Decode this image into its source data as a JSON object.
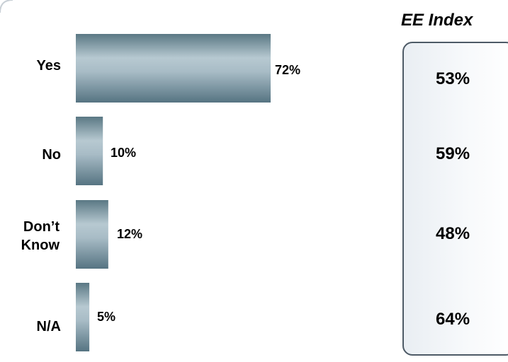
{
  "chart_data": {
    "type": "bar",
    "orientation": "horizontal",
    "categories": [
      "Yes",
      "No",
      "Don’t\nKnow",
      "N/A"
    ],
    "values": [
      72,
      10,
      12,
      5
    ],
    "value_labels": [
      "72%",
      "10%",
      "12%",
      "5%"
    ],
    "xlim": [
      0,
      100
    ],
    "grid": false,
    "bar_color": "#5f7f8d",
    "bar_highlight_color": "#b7c9d1"
  },
  "ee_index": {
    "title": "EE Index",
    "values": [
      "53%",
      "59%",
      "48%",
      "64%"
    ],
    "panel_border_color": "#4d5a66",
    "panel_fill_color": "#eef2f6"
  }
}
